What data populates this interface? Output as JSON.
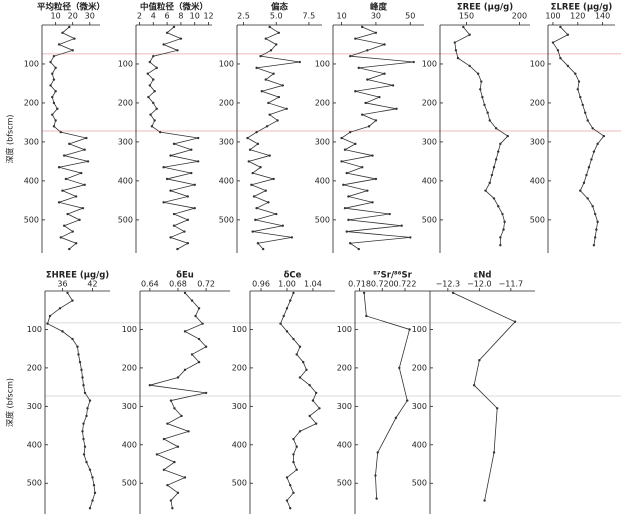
{
  "chart_data": [
    {
      "type": "line",
      "title": "平均粒径（微米）",
      "ylabel": "深度 (bfscm)",
      "color": "#333",
      "xlim": [
        2,
        36
      ],
      "xticks": [
        10,
        20,
        30
      ],
      "ylim": [
        0,
        585
      ],
      "yticks": [
        100,
        200,
        300,
        400,
        500
      ],
      "ref_lines": [
        74,
        272
      ],
      "ref_color": "#e8a0a0",
      "depth": [
        5,
        20,
        35,
        50,
        65,
        80,
        95,
        110,
        125,
        140,
        155,
        170,
        185,
        200,
        215,
        230,
        245,
        260,
        275,
        290,
        305,
        320,
        335,
        350,
        365,
        380,
        395,
        410,
        425,
        440,
        455,
        470,
        485,
        500,
        515,
        530,
        545,
        560,
        575
      ],
      "values": [
        18,
        14,
        21,
        12,
        20,
        9,
        7,
        10,
        8,
        9,
        7,
        10,
        8,
        9,
        11,
        8,
        10,
        9,
        13,
        28,
        18,
        27,
        15,
        29,
        12,
        25,
        16,
        27,
        14,
        22,
        12,
        26,
        17,
        24,
        15,
        20,
        13,
        22,
        18
      ]
    },
    {
      "type": "line",
      "title": "中值粒径（微米）",
      "color": "#333",
      "xlim": [
        1.5,
        12.5
      ],
      "xticks": [
        2,
        4,
        6,
        8,
        10,
        12
      ],
      "ylim": [
        0,
        585
      ],
      "yticks": [
        100,
        200,
        300,
        400,
        500
      ],
      "depth": [
        5,
        20,
        35,
        50,
        65,
        80,
        95,
        110,
        125,
        140,
        155,
        170,
        185,
        200,
        215,
        230,
        245,
        260,
        275,
        290,
        305,
        320,
        335,
        350,
        365,
        380,
        395,
        410,
        425,
        440,
        455,
        470,
        485,
        500,
        515,
        530,
        545,
        560,
        575
      ],
      "values": [
        7,
        6,
        8,
        5.5,
        7.5,
        4,
        3.5,
        4.5,
        3.2,
        4,
        3.5,
        4.2,
        3.3,
        4,
        4.5,
        3.6,
        4.2,
        3.8,
        5,
        10.5,
        7,
        9.5,
        6.5,
        10.5,
        5.5,
        9.5,
        6,
        10,
        6.5,
        9,
        5.5,
        10,
        7,
        9,
        7,
        8.5,
        6.5,
        9,
        7.5
      ]
    },
    {
      "type": "line",
      "title": "偏态",
      "color": "#333",
      "xlim": [
        2,
        8.5
      ],
      "xticks": [
        2.5,
        {
          "value": 5,
          "label": "5.0"
        },
        7.5
      ],
      "ylim": [
        0,
        585
      ],
      "yticks": [
        100,
        200,
        300,
        400,
        500
      ],
      "depth": [
        5,
        20,
        35,
        50,
        65,
        80,
        95,
        110,
        125,
        140,
        155,
        170,
        185,
        200,
        215,
        230,
        245,
        260,
        275,
        290,
        305,
        320,
        335,
        350,
        365,
        380,
        395,
        410,
        425,
        440,
        455,
        470,
        485,
        500,
        515,
        530,
        545,
        560,
        575
      ],
      "values": [
        4.5,
        5.2,
        4.2,
        5,
        4.6,
        3.8,
        6.8,
        3.5,
        4.8,
        4.2,
        5.5,
        3.9,
        5.2,
        4.4,
        5.8,
        4.5,
        5.1,
        4.3,
        3.5,
        2.8,
        3.6,
        3,
        4.5,
        2.9,
        3.8,
        3.2,
        4.8,
        3.1,
        4.2,
        3.3,
        4.4,
        3.5,
        5,
        3.4,
        5.5,
        3.2,
        6.2,
        3.6,
        4
      ]
    },
    {
      "type": "line",
      "title": "峰度",
      "color": "#333",
      "xlim": [
        5,
        58
      ],
      "xticks": [
        10,
        30,
        50
      ],
      "ylim": [
        0,
        585
      ],
      "yticks": [
        100,
        200,
        300,
        400,
        500
      ],
      "depth": [
        5,
        20,
        35,
        50,
        65,
        80,
        95,
        110,
        125,
        140,
        155,
        170,
        185,
        200,
        215,
        230,
        245,
        260,
        275,
        290,
        305,
        320,
        335,
        350,
        365,
        380,
        395,
        410,
        425,
        440,
        455,
        470,
        485,
        500,
        515,
        530,
        545,
        560,
        575
      ],
      "values": [
        22,
        30,
        18,
        35,
        25,
        15,
        52,
        20,
        35,
        25,
        40,
        18,
        32,
        24,
        42,
        22,
        30,
        26,
        15,
        10,
        18,
        12,
        28,
        10,
        22,
        13,
        30,
        11,
        25,
        14,
        28,
        12,
        38,
        14,
        45,
        13,
        50,
        15,
        20
      ]
    },
    {
      "type": "line",
      "title": "ΣREE (μg/g)",
      "color": "#333",
      "xlim": [
        125,
        210
      ],
      "xticks": [
        150,
        200
      ],
      "ylim": [
        0,
        585
      ],
      "yticks": [
        100,
        200,
        300,
        400,
        500
      ],
      "depth": [
        5,
        25,
        45,
        65,
        85,
        105,
        125,
        145,
        165,
        185,
        205,
        225,
        245,
        265,
        285,
        305,
        325,
        345,
        365,
        385,
        405,
        425,
        445,
        465,
        485,
        505,
        525,
        545,
        565
      ],
      "values": [
        147,
        153,
        139,
        140,
        142,
        153,
        161,
        164,
        163,
        165,
        167,
        170,
        172,
        178,
        189,
        182,
        180,
        178,
        176,
        174,
        172,
        168,
        176,
        180,
        184,
        186,
        185,
        182,
        182
      ]
    },
    {
      "type": "line",
      "title": "ΣLREE (μg/g)",
      "color": "#333",
      "xlim": [
        96,
        150
      ],
      "xticks": [
        100,
        120,
        140
      ],
      "ylim": [
        0,
        585
      ],
      "yticks": [
        100,
        200,
        300,
        400,
        500
      ],
      "depth": [
        5,
        25,
        45,
        65,
        85,
        105,
        125,
        145,
        165,
        185,
        205,
        225,
        245,
        265,
        285,
        305,
        325,
        345,
        365,
        385,
        405,
        425,
        445,
        465,
        485,
        505,
        525,
        545,
        565
      ],
      "values": [
        106,
        112,
        100,
        104,
        106,
        112,
        118,
        121,
        120,
        122,
        124,
        126,
        128,
        132,
        141,
        136,
        133,
        131,
        129,
        127,
        125,
        122,
        128,
        132,
        134,
        136,
        135,
        134,
        133
      ]
    },
    {
      "type": "line",
      "title": "ΣHREE (μg/g)",
      "ylabel": "深度 (bfscm)",
      "color": "#333",
      "xlim": [
        32.5,
        45.5
      ],
      "xticks": [
        36,
        42
      ],
      "ylim": [
        0,
        580
      ],
      "yticks": [
        100,
        200,
        300,
        400,
        500
      ],
      "ref_lines": [
        83,
        273
      ],
      "ref_color": "#cfcfcf",
      "depth": [
        5,
        25,
        45,
        65,
        85,
        105,
        125,
        145,
        165,
        185,
        205,
        225,
        245,
        265,
        285,
        305,
        325,
        345,
        365,
        385,
        405,
        425,
        445,
        465,
        485,
        505,
        525,
        545,
        565
      ],
      "values": [
        37,
        38,
        35.5,
        33.5,
        33,
        36,
        38,
        39,
        39.2,
        39.5,
        39.8,
        40,
        40.2,
        40.5,
        41.5,
        41,
        40.8,
        40.2,
        40,
        40.2,
        40.5,
        40.3,
        40.8,
        41.5,
        42,
        42.3,
        42.5,
        42,
        41.5
      ]
    },
    {
      "type": "line",
      "title": "δEu",
      "color": "#333",
      "xlim": [
        0.626,
        0.754
      ],
      "xticks": [
        0.64,
        0.68,
        0.72
      ],
      "ylim": [
        0,
        580
      ],
      "yticks": [
        100,
        200,
        300,
        400,
        500
      ],
      "depth": [
        5,
        25,
        45,
        65,
        85,
        105,
        125,
        145,
        165,
        185,
        205,
        225,
        245,
        265,
        285,
        305,
        325,
        345,
        365,
        385,
        405,
        425,
        445,
        465,
        485,
        505,
        525,
        545,
        565
      ],
      "values": [
        0.69,
        0.7,
        0.71,
        0.705,
        0.715,
        0.69,
        0.71,
        0.72,
        0.7,
        0.71,
        0.69,
        0.68,
        0.64,
        0.72,
        0.67,
        0.675,
        0.685,
        0.665,
        0.695,
        0.66,
        0.68,
        0.65,
        0.675,
        0.66,
        0.69,
        0.665,
        0.68,
        0.67,
        0.672
      ]
    },
    {
      "type": "line",
      "title": "δCe",
      "color": "#333",
      "xlim": [
        0.943,
        1.074
      ],
      "xticks": [
        0.96,
        {
          "value": 1,
          "label": "1.00"
        },
        1.04
      ],
      "ylim": [
        0,
        580
      ],
      "yticks": [
        100,
        200,
        300,
        400,
        500
      ],
      "depth": [
        5,
        25,
        45,
        65,
        85,
        105,
        125,
        145,
        165,
        185,
        205,
        225,
        245,
        265,
        285,
        305,
        325,
        345,
        365,
        385,
        405,
        425,
        445,
        465,
        485,
        505,
        525,
        545,
        565
      ],
      "values": [
        1.01,
        1.005,
        1,
        0.995,
        0.99,
        1,
        1.01,
        1.02,
        1.015,
        1.025,
        1.03,
        1.02,
        1.035,
        1.045,
        1.04,
        1.05,
        1.035,
        1.045,
        1.02,
        1.01,
        1.015,
        1.01,
        1.01,
        1.015,
        1,
        1.005,
        1.01,
        1,
        1.005
      ]
    },
    {
      "type": "line",
      "title": "⁸⁷Sr/⁸⁶Sr",
      "color": "#333",
      "xlim": [
        0.7176,
        0.7242
      ],
      "xticks": [
        0.718,
        {
          "value": 0.72,
          "label": "0.720"
        },
        0.722
      ],
      "ylim": [
        0,
        580
      ],
      "yticks": [
        100,
        200,
        300,
        400,
        500
      ],
      "depth": [
        5,
        65,
        100,
        200,
        285,
        330,
        420,
        480,
        540
      ],
      "values": [
        0.7184,
        0.7186,
        0.7224,
        0.7215,
        0.7222,
        0.7212,
        0.7196,
        0.7194,
        0.7195
      ]
    },
    {
      "type": "line",
      "title": "εNd",
      "color": "#333",
      "xlim": [
        -12.47,
        -11.47
      ],
      "xticks": [
        {
          "value": -12.3,
          "label": "−12.3"
        },
        {
          "value": -12,
          "label": "−12.0"
        },
        {
          "value": -11.7,
          "label": "−11.7"
        }
      ],
      "ylim": [
        0,
        580
      ],
      "yticks": [
        100,
        200,
        300,
        400,
        500
      ],
      "depth": [
        5,
        80,
        180,
        245,
        305,
        420,
        545
      ],
      "values": [
        -12.25,
        -11.66,
        -12,
        -12.05,
        -11.83,
        -11.86,
        -11.95
      ]
    }
  ]
}
